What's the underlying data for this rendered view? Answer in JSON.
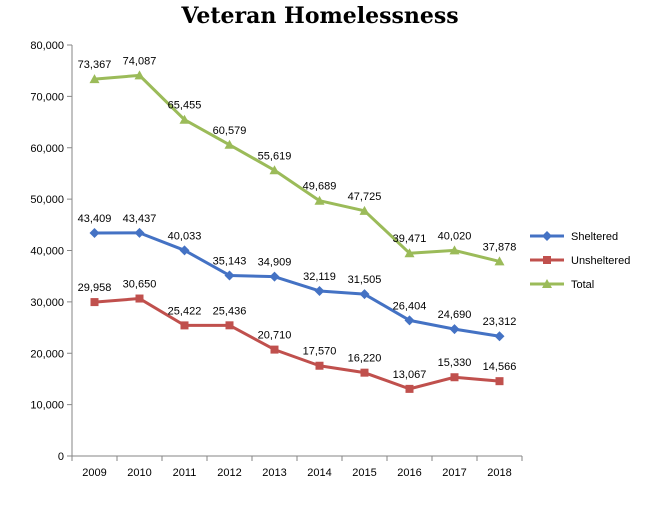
{
  "chart_data": {
    "type": "line",
    "title": "Veteran Homelessness",
    "xlabel": "",
    "ylabel": "",
    "ylim": [
      0,
      80000
    ],
    "yticks": [
      0,
      10000,
      20000,
      30000,
      40000,
      50000,
      60000,
      70000,
      80000
    ],
    "ytick_labels": [
      "0",
      "10,000",
      "20,000",
      "30,000",
      "40,000",
      "50,000",
      "60,000",
      "70,000",
      "80,000"
    ],
    "categories": [
      "2009",
      "2010",
      "2011",
      "2012",
      "2013",
      "2014",
      "2015",
      "2016",
      "2017",
      "2018"
    ],
    "grid": false,
    "legend": "right",
    "series": [
      {
        "name": "Sheltered",
        "color": "#4472C4",
        "marker": "diamond",
        "values": [
          43409,
          43437,
          40033,
          35143,
          34909,
          32119,
          31505,
          26404,
          24690,
          23312
        ],
        "labels": [
          "43,409",
          "43,437",
          "40,033",
          "35,143",
          "34,909",
          "32,119",
          "31,505",
          "26,404",
          "24,690",
          "23,312"
        ]
      },
      {
        "name": "Unsheltered",
        "color": "#C0504D",
        "marker": "square",
        "values": [
          29958,
          30650,
          25422,
          25436,
          20710,
          17570,
          16220,
          13067,
          15330,
          14566
        ],
        "labels": [
          "29,958",
          "30,650",
          "25,422",
          "25,436",
          "20,710",
          "17,570",
          "16,220",
          "13,067",
          "15,330",
          "14,566"
        ]
      },
      {
        "name": "Total",
        "color": "#9BBB59",
        "marker": "triangle",
        "values": [
          73367,
          74087,
          65455,
          60579,
          55619,
          49689,
          47725,
          39471,
          40020,
          37878
        ],
        "labels": [
          "73,367",
          "74,087",
          "65,455",
          "60,579",
          "55,619",
          "49,689",
          "47,725",
          "39,471",
          "40,020",
          "37,878"
        ]
      }
    ]
  }
}
